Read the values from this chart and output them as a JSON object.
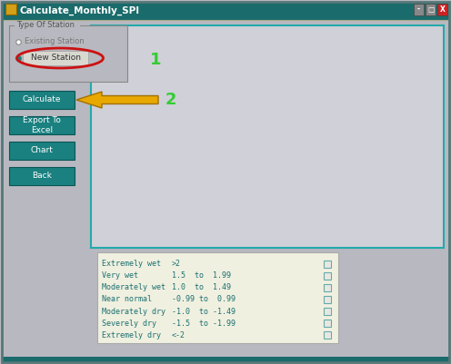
{
  "title": "Calculate_Monthly_SPI",
  "title_bar_color": "#1a6b6b",
  "title_icon_color": "#d4a017",
  "bg_color": "#b8b8c0",
  "type_box_label": "Type Of Station",
  "radio1": "Existing Station",
  "radio2": "New Station",
  "label1": "1",
  "label2": "2",
  "label_color": "#33cc33",
  "buttons": [
    "Calculate",
    "Export To\nExcel",
    "Chart",
    "Back"
  ],
  "button_color": "#1a8080",
  "button_text_color": "#ffffff",
  "button_font_size": 6.5,
  "legend_rows": [
    [
      "Extremely wet",
      ">2"
    ],
    [
      "Very wet",
      "1.5  to  1.99"
    ],
    [
      "Moderately wet",
      "1.0  to  1.49"
    ],
    [
      "Near normal",
      "-0.99 to  0.99"
    ],
    [
      "Moderately dry",
      "-1.0  to -1.49"
    ],
    [
      "Severely dry",
      "-1.5  to -1.99"
    ],
    [
      "Extremely dry",
      "<-2"
    ]
  ],
  "legend_text_color": "#1a7070",
  "legend_bg": "#f0f0e0",
  "legend_border_color": "#aaaaaa",
  "main_panel_border": "#22aaaa",
  "main_panel_bg": "#d0d0d8",
  "arrow_color": "#e8a800",
  "arrow_outline": "#a07000",
  "new_station_box_color": "#cc1111"
}
